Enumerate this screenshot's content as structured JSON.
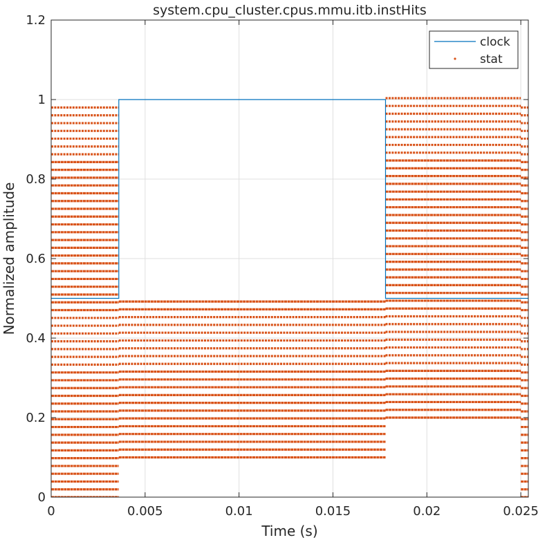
{
  "chart_data": {
    "type": "line",
    "title": "system.cpu_cluster.cpus.mmu.itb.instHits",
    "xlabel": "Time (s)",
    "ylabel": "Normalized amplitude",
    "xlim": [
      0,
      0.0254
    ],
    "ylim": [
      0,
      1.2
    ],
    "xticks": [
      0,
      0.005,
      0.01,
      0.015,
      0.02,
      0.025
    ],
    "xtick_labels": [
      "0",
      "0.005",
      "0.01",
      "0.015",
      "0.02",
      "0.025"
    ],
    "yticks": [
      0,
      0.2,
      0.4,
      0.6,
      0.8,
      1.0,
      1.2
    ],
    "ytick_labels": [
      "0",
      "0.2",
      "0.4",
      "0.6",
      "0.8",
      "1",
      "1.2"
    ],
    "grid": true,
    "legend_position": "top-right",
    "series": [
      {
        "name": "clock",
        "style": "line",
        "color": "#0072BD",
        "x": [
          0,
          0.0036,
          0.0036,
          0.0178,
          0.0178,
          0.0254
        ],
        "y": [
          0.5,
          0.5,
          1.0,
          1.0,
          0.5,
          0.5
        ]
      },
      {
        "name": "stat",
        "style": "dots",
        "color": "#D95319",
        "level_step": 0.0196,
        "segments": [
          {
            "x_start": 0,
            "x_end": 0.0036,
            "y_min": 0,
            "y_max": 0.98
          },
          {
            "x_start": 0.0036,
            "x_end": 0.0178,
            "y_min": 0.1,
            "y_max": 0.49
          },
          {
            "x_start": 0.0178,
            "x_end": 0.025,
            "y_min": 0.2,
            "y_max": 1.0
          },
          {
            "x_start": 0.025,
            "x_end": 0.0254,
            "y_min": 0,
            "y_max": 0.98
          }
        ]
      }
    ]
  }
}
